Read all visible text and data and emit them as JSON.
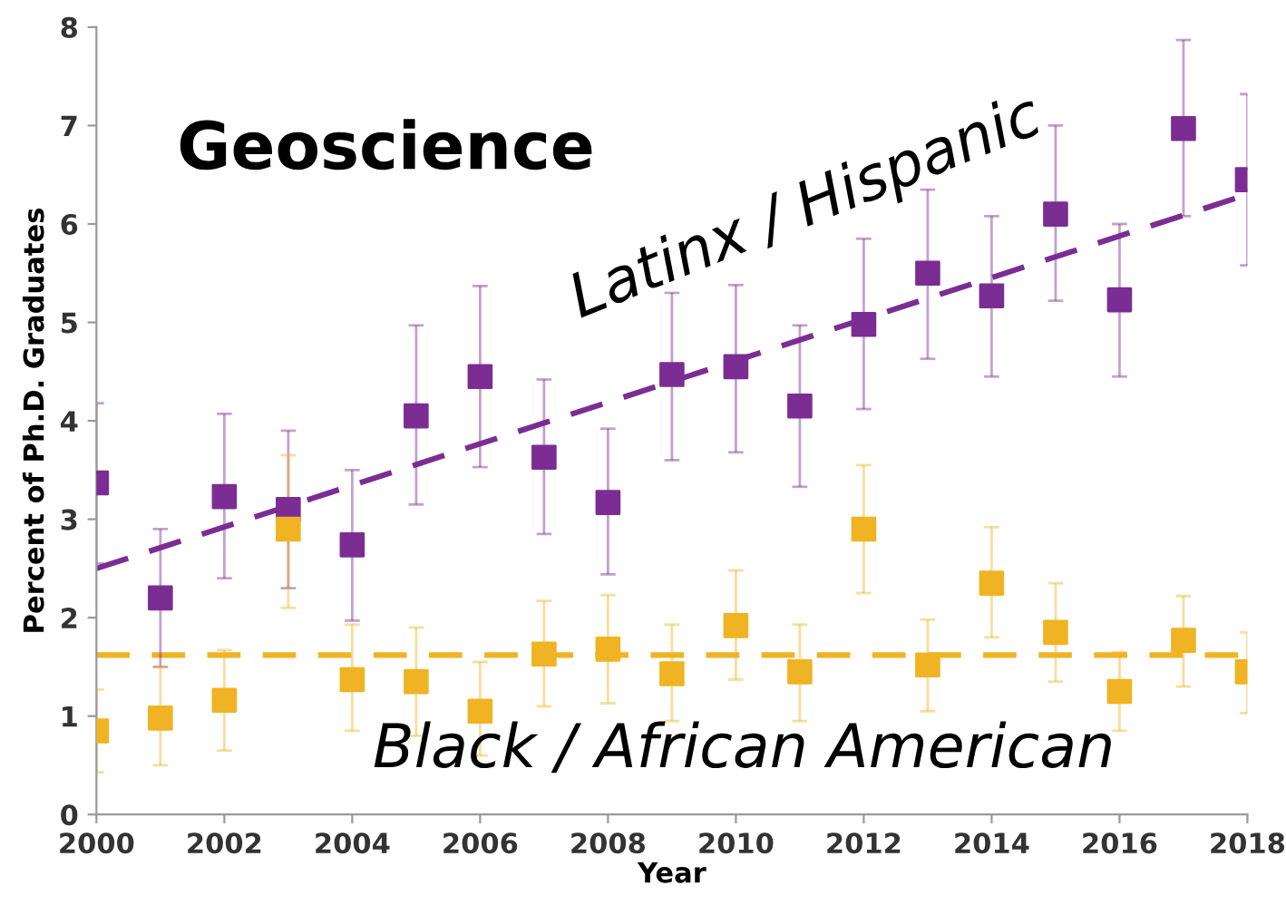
{
  "chart_data": {
    "type": "scatter",
    "xlabel": "Year",
    "ylabel": "Percent of Ph.D. Graduates",
    "annotations": [
      "Geoscience",
      "Latinx / Hispanic",
      "Black / African American"
    ],
    "x": [
      2000,
      2001,
      2002,
      2003,
      2004,
      2005,
      2006,
      2007,
      2008,
      2009,
      2010,
      2011,
      2012,
      2013,
      2014,
      2015,
      2016,
      2017,
      2018
    ],
    "series": [
      {
        "color": "#7b2d93",
        "values": [
          3.37,
          2.2,
          3.23,
          3.1,
          2.74,
          4.05,
          4.45,
          3.63,
          3.17,
          4.47,
          4.55,
          4.15,
          4.98,
          5.5,
          5.27,
          6.1,
          5.23,
          6.97,
          6.45
        ],
        "errors": [
          [
            2.55,
            4.18
          ],
          [
            1.5,
            2.9
          ],
          [
            2.4,
            4.07
          ],
          [
            2.3,
            3.9
          ],
          [
            1.97,
            3.5
          ],
          [
            3.15,
            4.97
          ],
          [
            3.53,
            5.37
          ],
          [
            2.85,
            4.42
          ],
          [
            2.44,
            3.92
          ],
          [
            3.6,
            5.3
          ],
          [
            3.68,
            5.38
          ],
          [
            3.33,
            4.97
          ],
          [
            4.12,
            5.85
          ],
          [
            4.63,
            6.35
          ],
          [
            4.45,
            6.08
          ],
          [
            5.22,
            7.0
          ],
          [
            4.45,
            6.0
          ],
          [
            6.08,
            7.87
          ],
          [
            5.58,
            7.32
          ]
        ]
      },
      {
        "color": "#f0b323",
        "values": [
          0.85,
          0.98,
          1.16,
          2.9,
          1.37,
          1.35,
          1.05,
          1.63,
          1.68,
          1.43,
          1.92,
          1.45,
          2.9,
          1.52,
          2.35,
          1.85,
          1.25,
          1.77,
          1.45
        ],
        "errors": [
          [
            0.43,
            1.27
          ],
          [
            0.5,
            1.5
          ],
          [
            0.65,
            1.67
          ],
          [
            2.1,
            3.65
          ],
          [
            0.85,
            1.93
          ],
          [
            0.8,
            1.9
          ],
          [
            0.6,
            1.55
          ],
          [
            1.1,
            2.17
          ],
          [
            1.13,
            2.23
          ],
          [
            0.95,
            1.93
          ],
          [
            1.37,
            2.48
          ],
          [
            0.95,
            1.93
          ],
          [
            2.25,
            3.55
          ],
          [
            1.05,
            1.98
          ],
          [
            1.8,
            2.92
          ],
          [
            1.35,
            2.35
          ],
          [
            0.85,
            1.65
          ],
          [
            1.3,
            2.22
          ],
          [
            1.03,
            1.85
          ]
        ]
      },
      {
        "type": "line",
        "color": "#7b2d93",
        "line_style": "dashed",
        "marker": "none",
        "x": [
          2000,
          2018
        ],
        "values": [
          2.5,
          6.3
        ]
      }
    ],
    "ref_lines": [
      {
        "axis": "y",
        "value": 1.62,
        "color": "#f0b323",
        "line_style": "dashed"
      }
    ],
    "marker": "square",
    "xlim": [
      2000,
      2018
    ],
    "ylim": [
      0,
      8
    ],
    "xticks": [
      2000,
      2002,
      2004,
      2006,
      2008,
      2010,
      2012,
      2014,
      2016,
      2018
    ],
    "yticks": [
      0,
      1,
      2,
      3,
      4,
      5,
      6,
      7,
      8
    ],
    "grid": false,
    "legend": false
  }
}
